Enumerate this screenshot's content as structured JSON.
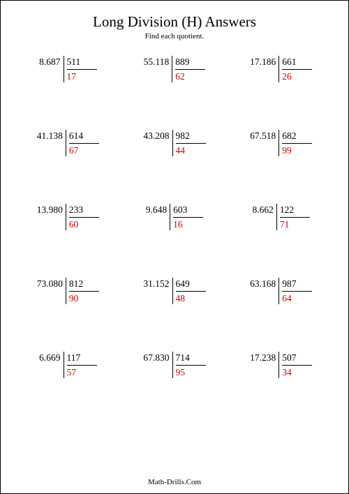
{
  "title": "Long Division (H) Answers",
  "subtitle": "Find each quotient.",
  "footer": "Math-Drills.Com",
  "answer_color": "#cc0000",
  "text_color": "#000000",
  "problems": [
    {
      "dividend": "8.687",
      "divisor": "511",
      "quotient": "17"
    },
    {
      "dividend": "55.118",
      "divisor": "889",
      "quotient": "62"
    },
    {
      "dividend": "17.186",
      "divisor": "661",
      "quotient": "26"
    },
    {
      "dividend": "41.138",
      "divisor": "614",
      "quotient": "67"
    },
    {
      "dividend": "43.208",
      "divisor": "982",
      "quotient": "44"
    },
    {
      "dividend": "67.518",
      "divisor": "682",
      "quotient": "99"
    },
    {
      "dividend": "13.980",
      "divisor": "233",
      "quotient": "60"
    },
    {
      "dividend": "9.648",
      "divisor": "603",
      "quotient": "16"
    },
    {
      "dividend": "8.662",
      "divisor": "122",
      "quotient": "71"
    },
    {
      "dividend": "73.080",
      "divisor": "812",
      "quotient": "90"
    },
    {
      "dividend": "31.152",
      "divisor": "649",
      "quotient": "48"
    },
    {
      "dividend": "63.168",
      "divisor": "987",
      "quotient": "64"
    },
    {
      "dividend": "6.669",
      "divisor": "117",
      "quotient": "57"
    },
    {
      "dividend": "67.830",
      "divisor": "714",
      "quotient": "95"
    },
    {
      "dividend": "17.238",
      "divisor": "507",
      "quotient": "34"
    }
  ]
}
